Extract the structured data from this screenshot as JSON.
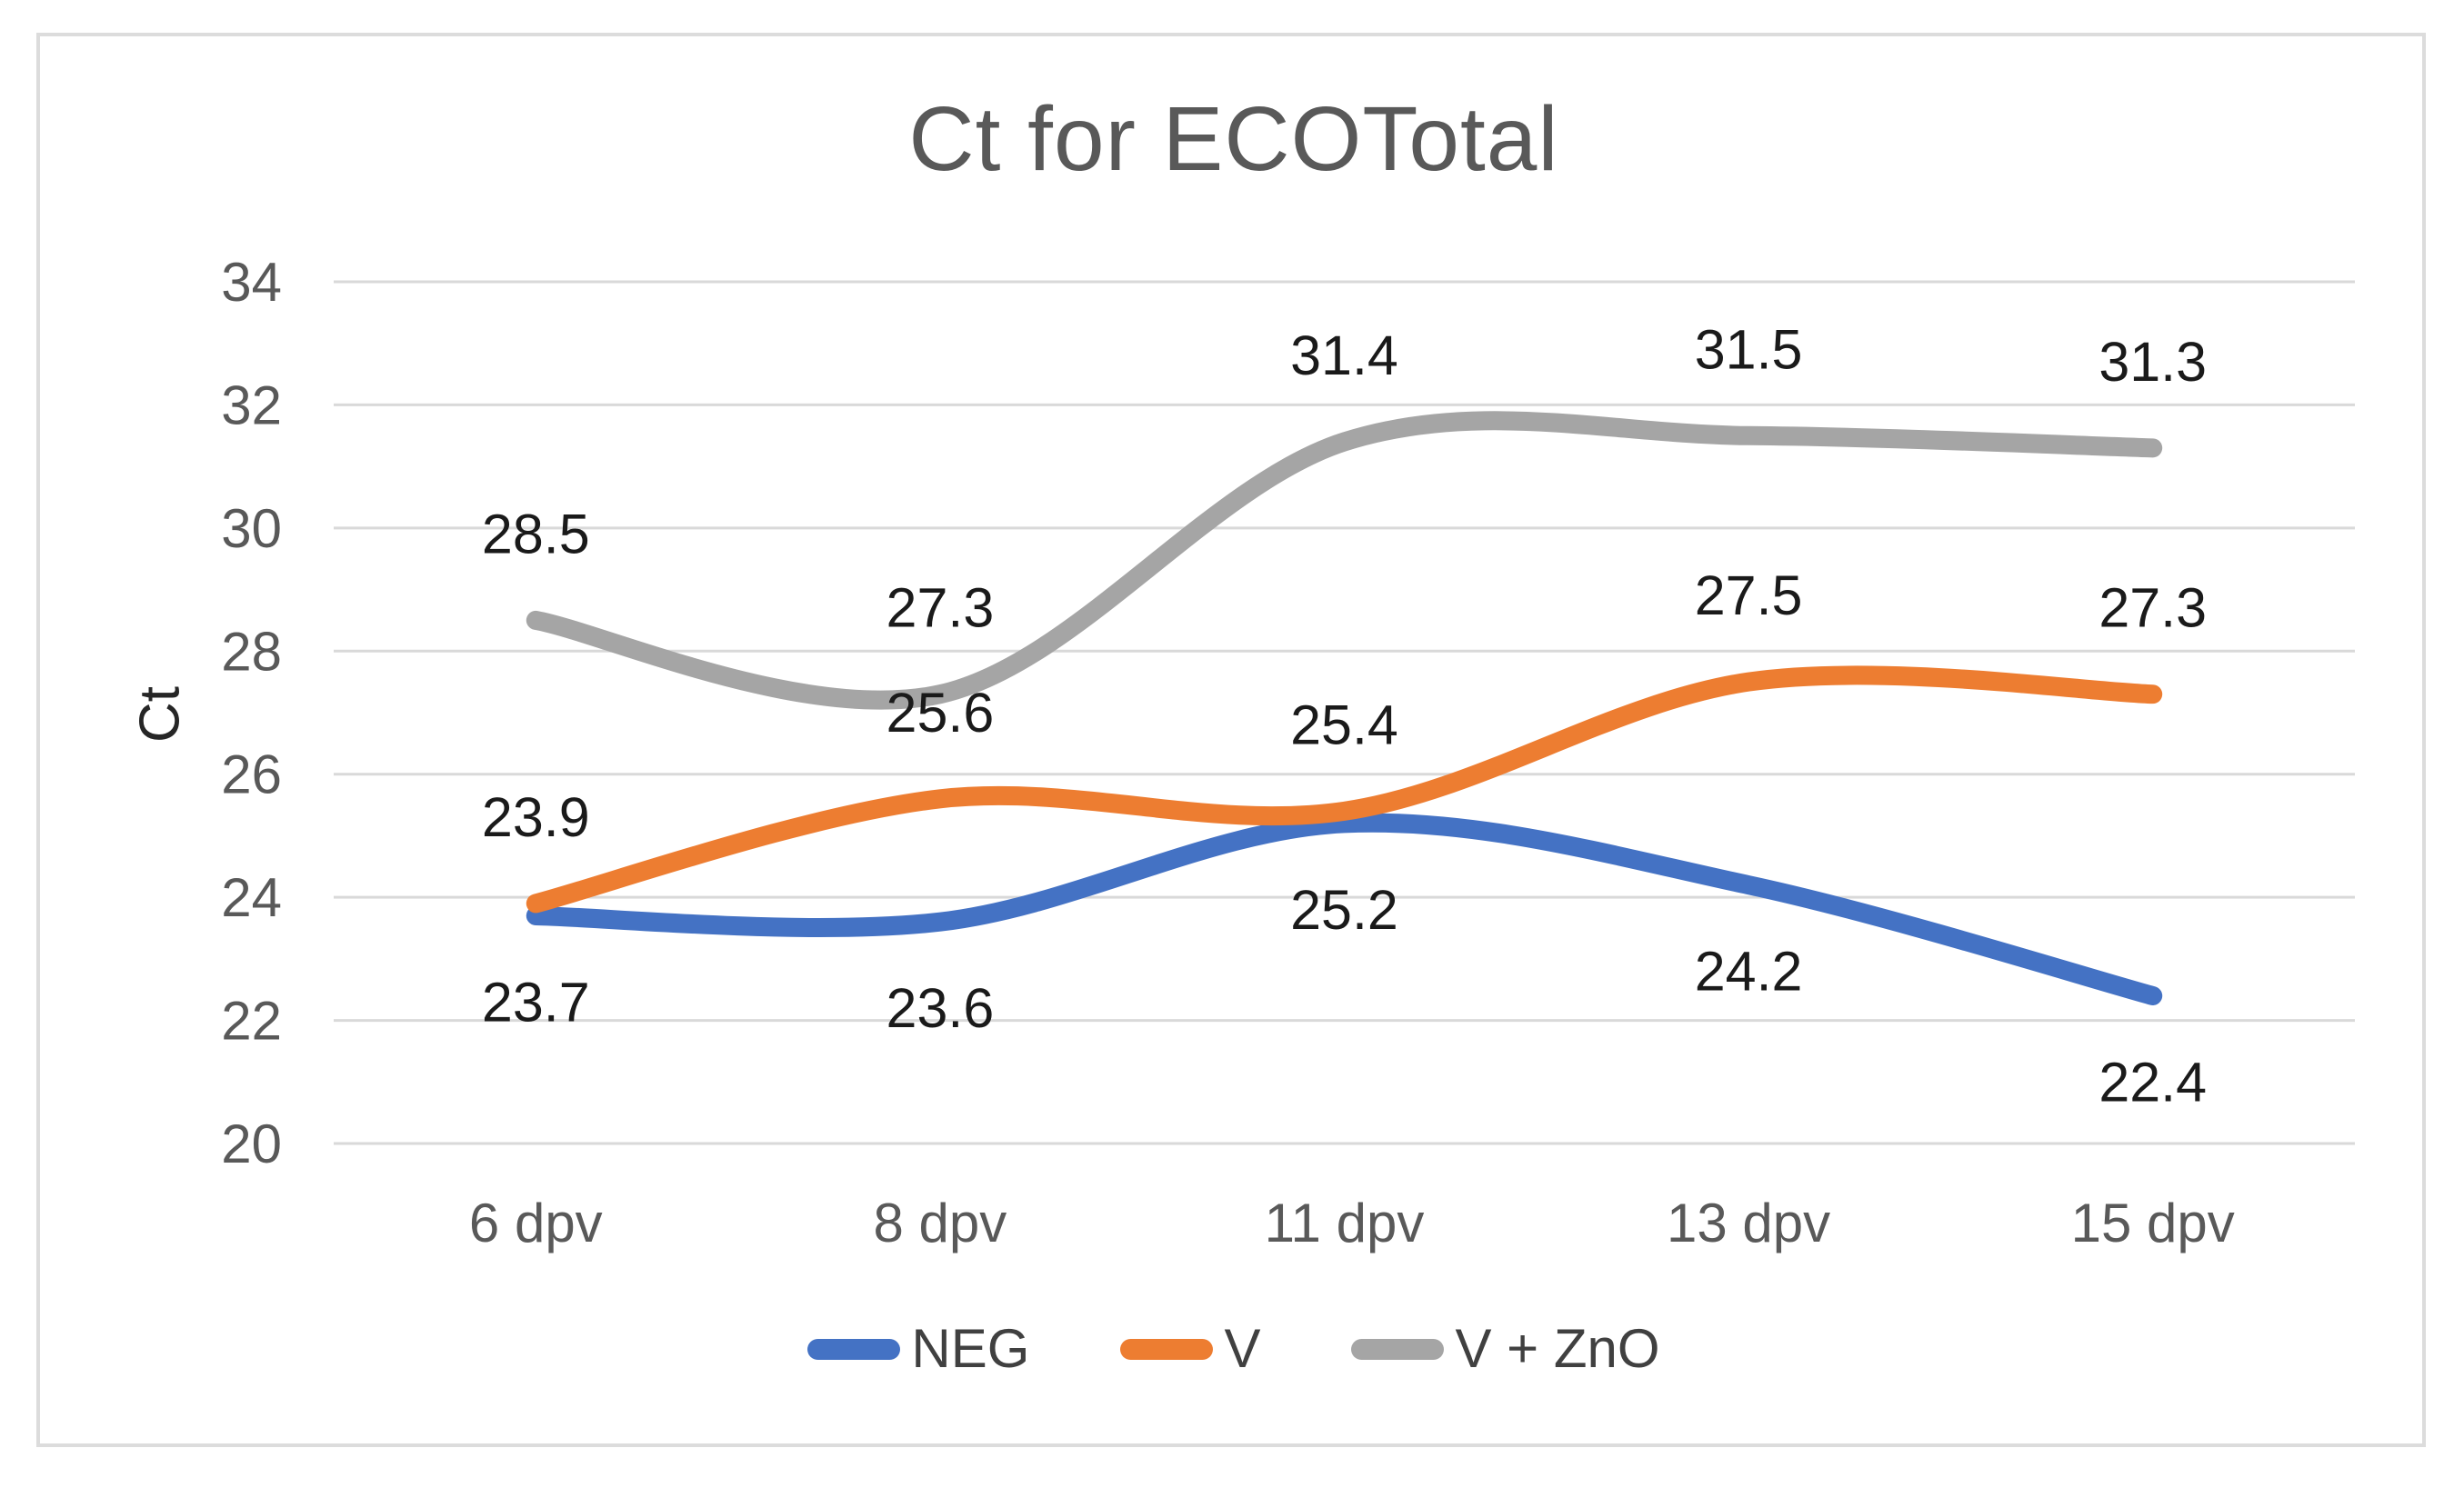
{
  "figure": {
    "background": "#ffffff",
    "frame_border_color": "#dcdcdc"
  },
  "chart_data": {
    "type": "line",
    "title": "Ct for ECOTotal",
    "xlabel": "",
    "ylabel": "Ct",
    "categories": [
      "6 dpv",
      "8 dpv",
      "11 dpv",
      "13 dpv",
      "15 dpv"
    ],
    "series": [
      {
        "name": "NEG",
        "color": "#4472C4",
        "values": [
          23.7,
          23.6,
          25.2,
          24.2,
          22.4
        ],
        "label_position": "below"
      },
      {
        "name": "V",
        "color": "#ED7D31",
        "values": [
          23.9,
          25.6,
          25.4,
          27.5,
          27.3
        ],
        "label_position": "above"
      },
      {
        "name": "V + ZnO",
        "color": "#A5A5A5",
        "values": [
          28.5,
          27.3,
          31.4,
          31.5,
          31.3
        ],
        "label_position": "above"
      }
    ],
    "ylim": [
      20,
      34
    ],
    "ytick_step": 2,
    "yticks": [
      34,
      32,
      30,
      28,
      26,
      24,
      22,
      20
    ],
    "grid": true,
    "gridline_color": "#d9d9d9",
    "line_style": "smooth",
    "line_width": 21,
    "legend_position": "bottom",
    "data_label_decimals": 1,
    "text_colors": {
      "title": "#595959",
      "axis_ticks": "#595959",
      "axis_title": "#262626",
      "data_labels": "#1a1a1a",
      "legend": "#404040"
    }
  }
}
